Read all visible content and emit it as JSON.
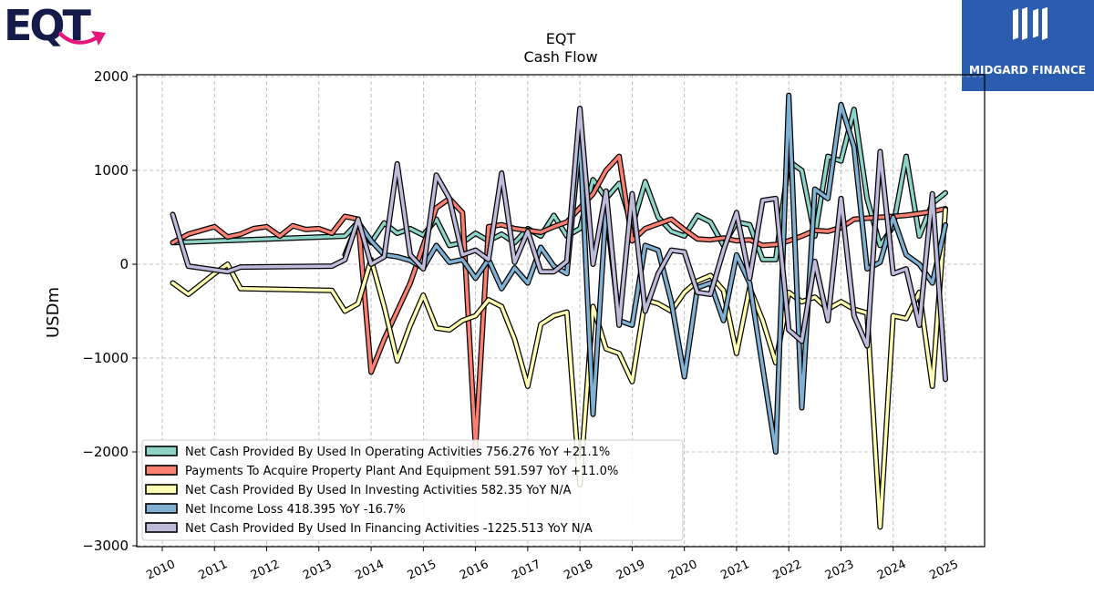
{
  "brand": {
    "left_logo_text": "EQT",
    "right_logo_text": "MIDGARD FINANCE",
    "left_logo_colors": {
      "letters": "#141a4a",
      "arrow": "#e6177a"
    },
    "right_logo_bg": "#2a5cb0"
  },
  "chart_data": {
    "type": "line",
    "title": "EQT",
    "subtitle": "Cash Flow",
    "ylabel": "USDm",
    "xlabel": "",
    "ylim": [
      -3000,
      2050
    ],
    "xlim": [
      2009.5,
      2025.75
    ],
    "yticks": [
      2000,
      1000,
      0,
      -1000,
      -2000,
      -3000
    ],
    "ytick_labels": [
      "2000",
      "1000",
      "0",
      "−1000",
      "−2000",
      "−3000"
    ],
    "xticks": [
      2010,
      2011,
      2012,
      2013,
      2014,
      2015,
      2016,
      2017,
      2018,
      2019,
      2020,
      2021,
      2022,
      2023,
      2024,
      2025
    ],
    "xtick_labels": [
      "2010",
      "2011",
      "2012",
      "2013",
      "2014",
      "2015",
      "2016",
      "2017",
      "2018",
      "2019",
      "2020",
      "2021",
      "2022",
      "2023",
      "2024",
      "2025"
    ],
    "grid": true,
    "legend_position": "lower-left",
    "series": [
      {
        "name": "Net Cash Provided By Used In Operating Activities",
        "legend": "Net Cash Provided By Used In Operating Activities  756.276 YoY +21.1%",
        "color": "#8dd3c7",
        "points": [
          [
            2010.2,
            230
          ],
          [
            2013.5,
            300
          ],
          [
            2013.75,
            450
          ],
          [
            2014.0,
            230
          ],
          [
            2014.25,
            440
          ],
          [
            2014.5,
            330
          ],
          [
            2014.75,
            380
          ],
          [
            2015.0,
            310
          ],
          [
            2015.25,
            480
          ],
          [
            2015.5,
            200
          ],
          [
            2015.75,
            230
          ],
          [
            2016.0,
            330
          ],
          [
            2016.25,
            250
          ],
          [
            2016.5,
            320
          ],
          [
            2016.75,
            230
          ],
          [
            2017.0,
            380
          ],
          [
            2017.25,
            300
          ],
          [
            2017.5,
            520
          ],
          [
            2017.75,
            300
          ],
          [
            2018.0,
            380
          ],
          [
            2018.25,
            900
          ],
          [
            2018.5,
            700
          ],
          [
            2018.75,
            860
          ],
          [
            2019.0,
            400
          ],
          [
            2019.25,
            880
          ],
          [
            2019.5,
            500
          ],
          [
            2019.75,
            350
          ],
          [
            2020.0,
            300
          ],
          [
            2020.25,
            520
          ],
          [
            2020.5,
            450
          ],
          [
            2020.75,
            200
          ],
          [
            2021.0,
            450
          ],
          [
            2021.25,
            420
          ],
          [
            2021.5,
            50
          ],
          [
            2021.75,
            50
          ],
          [
            2022.0,
            1100
          ],
          [
            2022.25,
            1000
          ],
          [
            2022.5,
            300
          ],
          [
            2022.75,
            1150
          ],
          [
            2023.0,
            1100
          ],
          [
            2023.25,
            1650
          ],
          [
            2023.5,
            700
          ],
          [
            2023.75,
            200
          ],
          [
            2024.0,
            400
          ],
          [
            2024.25,
            1150
          ],
          [
            2024.5,
            300
          ],
          [
            2024.75,
            650
          ],
          [
            2025.0,
            760
          ]
        ]
      },
      {
        "name": "Payments To Acquire Property Plant And Equipment",
        "legend": "Payments To Acquire Property Plant And Equipment  591.597 YoY +11.0%",
        "color": "#fb8072",
        "points": [
          [
            2010.2,
            230
          ],
          [
            2010.5,
            320
          ],
          [
            2011.0,
            400
          ],
          [
            2011.25,
            290
          ],
          [
            2011.5,
            320
          ],
          [
            2011.75,
            380
          ],
          [
            2012.0,
            400
          ],
          [
            2012.25,
            300
          ],
          [
            2012.5,
            410
          ],
          [
            2012.75,
            370
          ],
          [
            2013.0,
            380
          ],
          [
            2013.25,
            330
          ],
          [
            2013.5,
            510
          ],
          [
            2013.75,
            480
          ],
          [
            2014.0,
            -1150
          ],
          [
            2014.25,
            -800
          ],
          [
            2014.5,
            -500
          ],
          [
            2014.75,
            -200
          ],
          [
            2015.0,
            200
          ],
          [
            2015.25,
            600
          ],
          [
            2015.5,
            700
          ],
          [
            2015.75,
            550
          ],
          [
            2016.0,
            -1950
          ],
          [
            2016.25,
            400
          ],
          [
            2016.5,
            420
          ],
          [
            2016.75,
            380
          ],
          [
            2017.0,
            360
          ],
          [
            2017.25,
            340
          ],
          [
            2017.5,
            400
          ],
          [
            2017.75,
            450
          ],
          [
            2018.0,
            600
          ],
          [
            2018.25,
            750
          ],
          [
            2018.5,
            1000
          ],
          [
            2018.75,
            1150
          ],
          [
            2019.0,
            250
          ],
          [
            2019.25,
            380
          ],
          [
            2019.5,
            430
          ],
          [
            2019.75,
            480
          ],
          [
            2020.0,
            370
          ],
          [
            2020.25,
            270
          ],
          [
            2020.5,
            260
          ],
          [
            2020.75,
            280
          ],
          [
            2021.0,
            250
          ],
          [
            2021.25,
            260
          ],
          [
            2021.5,
            200
          ],
          [
            2021.75,
            210
          ],
          [
            2022.0,
            250
          ],
          [
            2022.25,
            300
          ],
          [
            2022.5,
            360
          ],
          [
            2022.75,
            350
          ],
          [
            2023.0,
            390
          ],
          [
            2023.25,
            480
          ],
          [
            2023.5,
            490
          ],
          [
            2023.75,
            500
          ],
          [
            2024.0,
            510
          ],
          [
            2024.25,
            520
          ],
          [
            2024.5,
            540
          ],
          [
            2024.75,
            560
          ],
          [
            2025.0,
            592
          ]
        ]
      },
      {
        "name": "Net Cash Provided By Used In Investing Activities",
        "legend": "Net Cash Provided By Used In Investing Activities  582.35 YoY N/A",
        "color": "#ffffb3",
        "points": [
          [
            2010.2,
            -200
          ],
          [
            2010.5,
            -320
          ],
          [
            2011.0,
            -100
          ],
          [
            2011.25,
            0
          ],
          [
            2011.5,
            -260
          ],
          [
            2013.25,
            -280
          ],
          [
            2013.5,
            -500
          ],
          [
            2013.75,
            -420
          ],
          [
            2014.0,
            50
          ],
          [
            2014.25,
            -450
          ],
          [
            2014.5,
            -1030
          ],
          [
            2014.75,
            -650
          ],
          [
            2015.0,
            -330
          ],
          [
            2015.25,
            -680
          ],
          [
            2015.5,
            -700
          ],
          [
            2015.75,
            -600
          ],
          [
            2016.0,
            -550
          ],
          [
            2016.25,
            -380
          ],
          [
            2016.5,
            -450
          ],
          [
            2016.75,
            -800
          ],
          [
            2017.0,
            -1300
          ],
          [
            2017.25,
            -640
          ],
          [
            2017.5,
            -550
          ],
          [
            2017.75,
            -510
          ],
          [
            2018.0,
            -2350
          ],
          [
            2018.25,
            -450
          ],
          [
            2018.5,
            -900
          ],
          [
            2018.75,
            -950
          ],
          [
            2019.0,
            -1250
          ],
          [
            2019.25,
            -380
          ],
          [
            2019.5,
            -420
          ],
          [
            2019.75,
            -500
          ],
          [
            2020.0,
            -300
          ],
          [
            2020.25,
            -180
          ],
          [
            2020.5,
            -120
          ],
          [
            2020.75,
            -280
          ],
          [
            2021.0,
            -950
          ],
          [
            2021.25,
            -250
          ],
          [
            2021.5,
            -600
          ],
          [
            2021.75,
            -1050
          ],
          [
            2022.0,
            -300
          ],
          [
            2022.25,
            -400
          ],
          [
            2022.5,
            -350
          ],
          [
            2022.75,
            -480
          ],
          [
            2023.0,
            -400
          ],
          [
            2023.25,
            -480
          ],
          [
            2023.5,
            -520
          ],
          [
            2023.75,
            -2800
          ],
          [
            2024.0,
            -550
          ],
          [
            2024.25,
            -580
          ],
          [
            2024.5,
            -300
          ],
          [
            2024.75,
            -1300
          ],
          [
            2025.0,
            582
          ]
        ]
      },
      {
        "name": "Net Income Loss",
        "legend": "Net Income Loss  418.395 YoY -16.7%",
        "color": "#80b1d3",
        "points": [
          [
            2013.5,
            100
          ],
          [
            2013.75,
            450
          ],
          [
            2014.0,
            250
          ],
          [
            2014.25,
            100
          ],
          [
            2014.5,
            80
          ],
          [
            2014.75,
            40
          ],
          [
            2015.0,
            -40
          ],
          [
            2015.25,
            200
          ],
          [
            2015.5,
            20
          ],
          [
            2015.75,
            50
          ],
          [
            2016.0,
            -150
          ],
          [
            2016.25,
            50
          ],
          [
            2016.5,
            -260
          ],
          [
            2016.75,
            -40
          ],
          [
            2017.0,
            -200
          ],
          [
            2017.25,
            180
          ],
          [
            2017.5,
            -20
          ],
          [
            2017.75,
            -100
          ],
          [
            2018.0,
            1350
          ],
          [
            2018.25,
            -1600
          ],
          [
            2018.5,
            600
          ],
          [
            2018.75,
            -600
          ],
          [
            2019.0,
            -650
          ],
          [
            2019.25,
            200
          ],
          [
            2019.5,
            150
          ],
          [
            2019.75,
            -400
          ],
          [
            2020.0,
            -1200
          ],
          [
            2020.25,
            -250
          ],
          [
            2020.5,
            -200
          ],
          [
            2020.75,
            -600
          ],
          [
            2021.0,
            100
          ],
          [
            2021.25,
            -200
          ],
          [
            2021.5,
            -1100
          ],
          [
            2021.75,
            -2000
          ],
          [
            2022.0,
            1800
          ],
          [
            2022.25,
            -1530
          ],
          [
            2022.5,
            800
          ],
          [
            2022.75,
            700
          ],
          [
            2023.0,
            1700
          ],
          [
            2023.25,
            1250
          ],
          [
            2023.5,
            -50
          ],
          [
            2023.75,
            20
          ],
          [
            2024.0,
            500
          ],
          [
            2024.25,
            100
          ],
          [
            2024.5,
            0
          ],
          [
            2024.75,
            -200
          ],
          [
            2025.0,
            418
          ]
        ]
      },
      {
        "name": "Net Cash Provided By Used In Financing Activities",
        "legend": "Net Cash Provided By Used In Financing Activities  -1225.513 YoY N/A",
        "color": "#bebada",
        "points": [
          [
            2010.2,
            530
          ],
          [
            2010.5,
            -20
          ],
          [
            2011.25,
            -80
          ],
          [
            2011.5,
            -30
          ],
          [
            2013.25,
            -20
          ],
          [
            2013.5,
            50
          ],
          [
            2013.75,
            480
          ],
          [
            2014.0,
            0
          ],
          [
            2014.25,
            80
          ],
          [
            2014.5,
            1070
          ],
          [
            2014.75,
            100
          ],
          [
            2015.0,
            -50
          ],
          [
            2015.25,
            950
          ],
          [
            2015.5,
            700
          ],
          [
            2015.75,
            100
          ],
          [
            2016.0,
            150
          ],
          [
            2016.25,
            50
          ],
          [
            2016.5,
            970
          ],
          [
            2016.75,
            20
          ],
          [
            2017.0,
            350
          ],
          [
            2017.25,
            -80
          ],
          [
            2017.5,
            -80
          ],
          [
            2017.75,
            30
          ],
          [
            2018.0,
            1660
          ],
          [
            2018.25,
            0
          ],
          [
            2018.5,
            780
          ],
          [
            2018.75,
            -650
          ],
          [
            2019.0,
            750
          ],
          [
            2019.25,
            -500
          ],
          [
            2019.5,
            -100
          ],
          [
            2019.75,
            150
          ],
          [
            2020.0,
            130
          ],
          [
            2020.25,
            -300
          ],
          [
            2020.5,
            -320
          ],
          [
            2020.75,
            150
          ],
          [
            2021.0,
            550
          ],
          [
            2021.25,
            -150
          ],
          [
            2021.5,
            680
          ],
          [
            2021.75,
            700
          ],
          [
            2022.0,
            -700
          ],
          [
            2022.25,
            -820
          ],
          [
            2022.5,
            30
          ],
          [
            2022.75,
            -600
          ],
          [
            2023.0,
            700
          ],
          [
            2023.25,
            -550
          ],
          [
            2023.5,
            -870
          ],
          [
            2023.75,
            1200
          ],
          [
            2024.0,
            -100
          ],
          [
            2024.25,
            -50
          ],
          [
            2024.5,
            -650
          ],
          [
            2024.75,
            750
          ],
          [
            2025.0,
            -1226
          ]
        ]
      }
    ]
  }
}
